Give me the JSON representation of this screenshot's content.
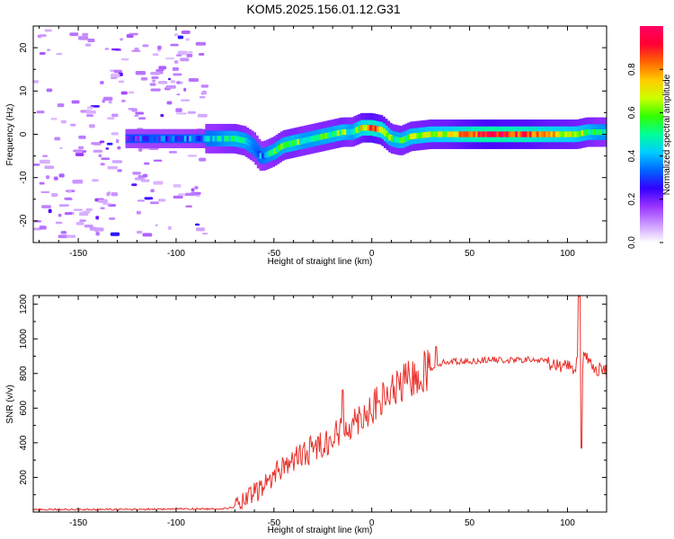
{
  "title": "KOM5.2025.156.01.12.G31",
  "chart_data": [
    {
      "type": "heatmap",
      "xlabel": "Height of straight line (km)",
      "ylabel": "Frequency (Hz)",
      "xlim": [
        -173,
        120
      ],
      "ylim": [
        -25,
        25
      ],
      "xticks": [
        -150,
        -100,
        -50,
        0,
        50,
        100
      ],
      "yticks": [
        -20,
        -10,
        0,
        10,
        20
      ],
      "colorbar": {
        "label": "Normalized spectral amplitude",
        "range": [
          0,
          1
        ],
        "ticks": [
          "0.0",
          "0.2",
          "0.4",
          "0.6",
          "0.8"
        ],
        "colors": [
          "#ffffff",
          "#cc99ff",
          "#9933ff",
          "#3300ff",
          "#0066ff",
          "#00ccff",
          "#00ff99",
          "#33ff00",
          "#ccff00",
          "#ffcc00",
          "#ff6600",
          "#ff0033",
          "#ff0066"
        ]
      },
      "signal_track": {
        "x": [
          -125,
          -110,
          -100,
          -90,
          -80,
          -75,
          -70,
          -65,
          -60,
          -57,
          -55,
          -50,
          -45,
          -40,
          -35,
          -30,
          -25,
          -20,
          -15,
          -10,
          -5,
          0,
          5,
          10,
          15,
          20,
          30,
          40,
          50,
          60,
          70,
          80,
          90,
          100,
          105,
          110,
          115,
          120
        ],
        "frequency": [
          -1,
          -1,
          -1,
          -1,
          -1,
          -1,
          -1,
          -1.5,
          -3,
          -5,
          -5,
          -4,
          -2.5,
          -2,
          -1.5,
          -1,
          -0.5,
          0,
          0.5,
          0.5,
          1.5,
          1.5,
          1,
          -1,
          -1.5,
          -0.5,
          0,
          0,
          0,
          0,
          0,
          0,
          0,
          0,
          0,
          0.5,
          0.5,
          0.5
        ],
        "amplitude": [
          0.25,
          0.3,
          0.3,
          0.35,
          0.4,
          0.5,
          0.55,
          0.5,
          0.4,
          0.35,
          0.4,
          0.5,
          0.55,
          0.6,
          0.5,
          0.5,
          0.55,
          0.55,
          0.6,
          0.5,
          0.7,
          0.85,
          0.75,
          0.55,
          0.55,
          0.6,
          0.65,
          0.7,
          0.85,
          0.95,
          0.9,
          0.85,
          0.75,
          0.7,
          0.65,
          0.6,
          0.5,
          0.45
        ]
      },
      "noise_region_x": [
        -173,
        -85
      ]
    },
    {
      "type": "line",
      "xlabel": "Height of straight line (km)",
      "ylabel": "SNR (v/v)",
      "xlim": [
        -173,
        120
      ],
      "ylim": [
        0,
        1250
      ],
      "xticks": [
        -150,
        -100,
        -50,
        0,
        50,
        100
      ],
      "yticks": [
        200,
        400,
        600,
        800,
        1000,
        1200
      ],
      "color": "#e8302a",
      "series": [
        {
          "x": [
            -173,
            -150,
            -120,
            -100,
            -85,
            -75,
            -70,
            -65,
            -60,
            -55,
            -50,
            -45,
            -40,
            -35,
            -30,
            -25,
            -20,
            -15,
            -10,
            -5,
            0,
            5,
            10,
            15,
            20,
            25,
            30,
            35,
            40,
            50,
            60,
            70,
            80,
            90,
            95,
            100,
            103,
            105,
            106,
            107,
            108,
            110,
            112,
            115,
            120
          ],
          "y": [
            15,
            15,
            15,
            18,
            18,
            20,
            30,
            60,
            110,
            150,
            220,
            270,
            300,
            330,
            370,
            400,
            430,
            470,
            520,
            560,
            600,
            640,
            690,
            730,
            770,
            800,
            830,
            860,
            870,
            870,
            880,
            875,
            880,
            870,
            840,
            860,
            820,
            880,
            1250,
            370,
            900,
            880,
            860,
            830,
            810
          ]
        }
      ],
      "peaks": [
        {
          "x": -15,
          "y": 705
        },
        {
          "x": 33,
          "y": 955
        },
        {
          "x": 106,
          "y": 1245
        },
        {
          "x": 107,
          "y": 370
        }
      ]
    }
  ]
}
